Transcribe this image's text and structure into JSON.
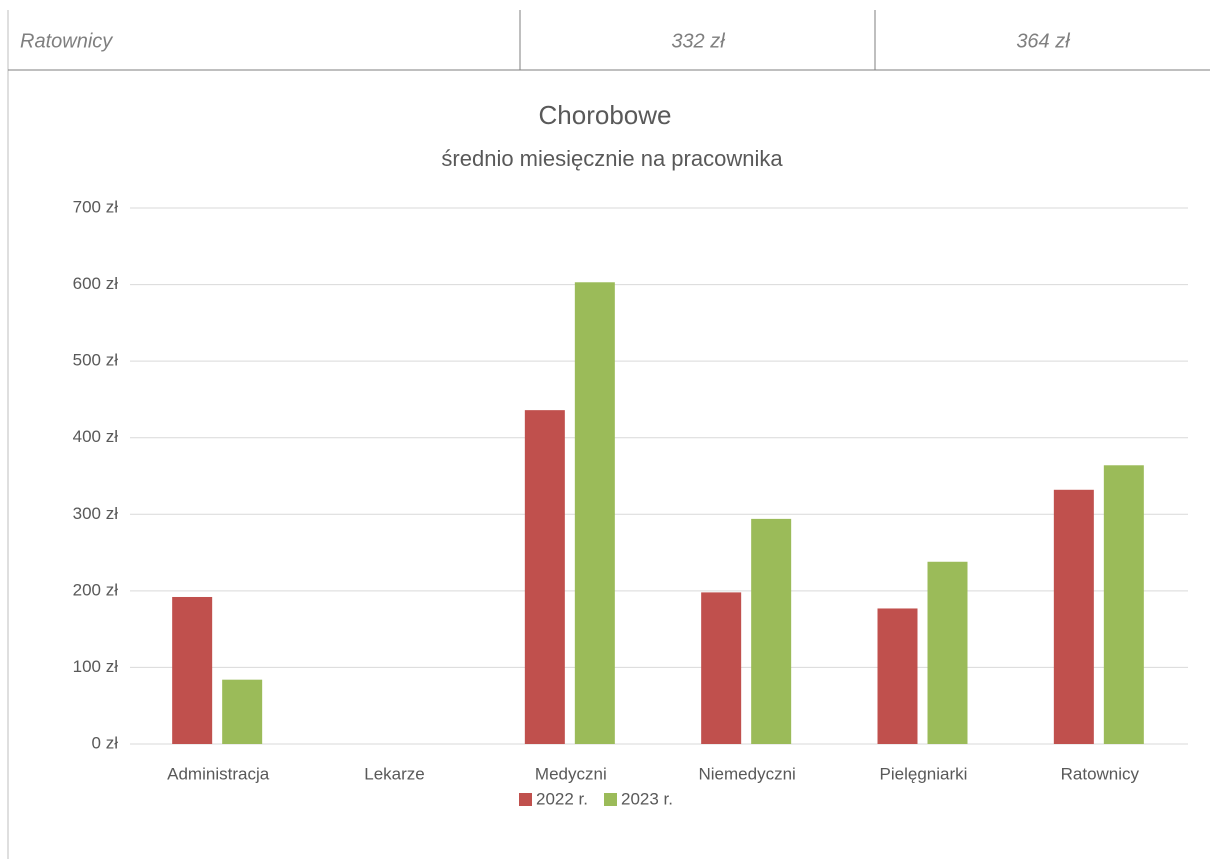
{
  "table": {
    "rows": [
      [
        "Ratownicy",
        "332 zł",
        "364 zł"
      ]
    ]
  },
  "chart_data": {
    "type": "bar",
    "title": "Chorobowe",
    "subtitle": "średnio miesięcznie na pracownika",
    "categories": [
      "Administracja",
      "Lekarze",
      "Medyczni",
      "Niemedyczni",
      "Pielęgniarki",
      "Ratownicy"
    ],
    "series": [
      {
        "name": "2022 r.",
        "color": "#c0504d",
        "values": [
          192,
          0,
          436,
          198,
          177,
          332
        ]
      },
      {
        "name": "2023 r.",
        "color": "#9bbb59",
        "values": [
          84,
          0,
          603,
          294,
          238,
          364
        ]
      }
    ],
    "ylim": [
      0,
      700
    ],
    "yticks": [
      {
        "value": 0,
        "label": "0 zł"
      },
      {
        "value": 100,
        "label": "100 zł"
      },
      {
        "value": 200,
        "label": "200 zł"
      },
      {
        "value": 300,
        "label": "300 zł"
      },
      {
        "value": 400,
        "label": "400 zł"
      },
      {
        "value": 500,
        "label": "500 zł"
      },
      {
        "value": 600,
        "label": "600 zł"
      },
      {
        "value": 700,
        "label": "700 zł"
      }
    ],
    "grid": true,
    "legend": "bottom"
  }
}
